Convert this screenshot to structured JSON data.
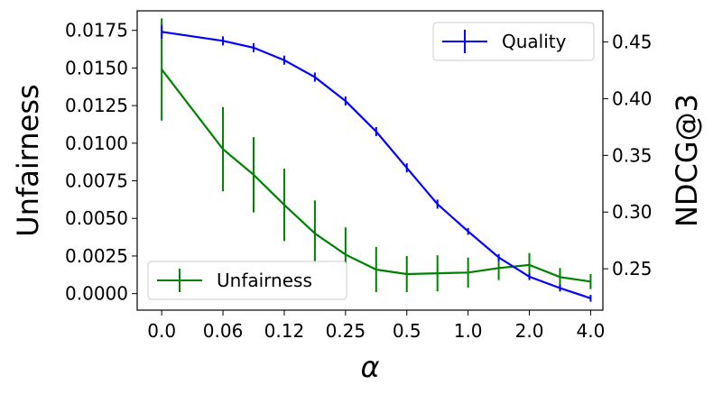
{
  "chart_data": {
    "type": "line",
    "xlabel": "α",
    "ylabel_left": "Unfairness",
    "ylabel_right": "NDCG@3",
    "x_tick_labels": [
      "0.0",
      "0.06",
      "0.12",
      "0.25",
      "0.5",
      "1.0",
      "2.0",
      "4.0"
    ],
    "x_positions": [
      0,
      1,
      1.5,
      2,
      2.5,
      3,
      3.5,
      4,
      4.5,
      5,
      5.5,
      6,
      6.5,
      7
    ],
    "y_left": {
      "range": [
        -0.0011,
        0.0188
      ],
      "ticks": [
        0.0,
        0.0025,
        0.005,
        0.0075,
        0.01,
        0.0125,
        0.015,
        0.0175
      ],
      "tick_labels": [
        "0.0000",
        "0.0025",
        "0.0050",
        "0.0075",
        "0.0100",
        "0.0125",
        "0.0150",
        "0.0175"
      ]
    },
    "y_right": {
      "range": [
        0.2135,
        0.4775
      ],
      "ticks": [
        0.25,
        0.3,
        0.35,
        0.4,
        0.45
      ],
      "tick_labels": [
        "0.25",
        "0.30",
        "0.35",
        "0.40",
        "0.45"
      ]
    },
    "series": [
      {
        "name": "Quality",
        "axis": "right",
        "color": "#0000ff",
        "values": [
          0.459,
          0.451,
          0.445,
          0.434,
          0.419,
          0.398,
          0.371,
          0.339,
          0.307,
          0.283,
          0.26,
          0.243,
          0.233,
          0.224
        ],
        "errors": [
          0.006,
          0.004,
          0.004,
          0.004,
          0.004,
          0.004,
          0.004,
          0.004,
          0.004,
          0.003,
          0.003,
          0.003,
          0.003,
          0.003
        ]
      },
      {
        "name": "Unfairness",
        "axis": "left",
        "color": "#008000",
        "values": [
          0.0149,
          0.0096,
          0.0079,
          0.0059,
          0.004,
          0.0026,
          0.0016,
          0.0013,
          0.00135,
          0.0014,
          0.0017,
          0.0019,
          0.0011,
          0.0008
        ],
        "errors": [
          0.0034,
          0.0028,
          0.0025,
          0.0024,
          0.0022,
          0.0018,
          0.0015,
          0.0012,
          0.0012,
          0.001,
          0.0008,
          0.0008,
          0.0006,
          0.0005
        ]
      }
    ],
    "legends": [
      {
        "series": "Quality",
        "placement": "top-right"
      },
      {
        "series": "Unfairness",
        "placement": "bottom-left"
      }
    ],
    "grid": false
  }
}
